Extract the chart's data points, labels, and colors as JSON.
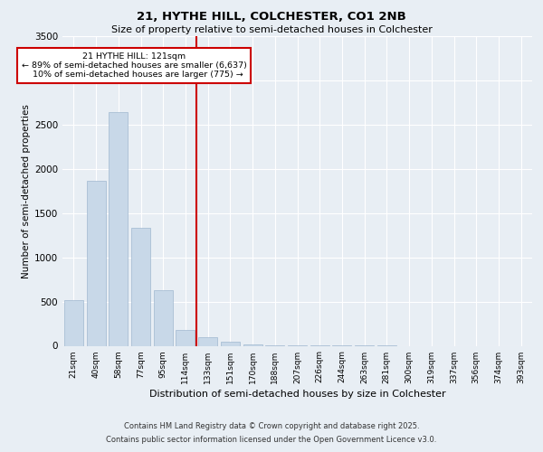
{
  "title1": "21, HYTHE HILL, COLCHESTER, CO1 2NB",
  "title2": "Size of property relative to semi-detached houses in Colchester",
  "xlabel": "Distribution of semi-detached houses by size in Colchester",
  "ylabel": "Number of semi-detached properties",
  "bin_labels": [
    "21sqm",
    "40sqm",
    "58sqm",
    "77sqm",
    "95sqm",
    "114sqm",
    "133sqm",
    "151sqm",
    "170sqm",
    "188sqm",
    "207sqm",
    "226sqm",
    "244sqm",
    "263sqm",
    "281sqm",
    "300sqm",
    "319sqm",
    "337sqm",
    "356sqm",
    "374sqm",
    "393sqm"
  ],
  "bar_values": [
    520,
    1860,
    2640,
    1330,
    630,
    180,
    100,
    50,
    20,
    10,
    5,
    3,
    2,
    1,
    1,
    0,
    0,
    0,
    0,
    0,
    0
  ],
  "bar_color": "#c8d8e8",
  "bar_edge_color": "#a0b8d0",
  "vline_x": 5.5,
  "vline_color": "#cc0000",
  "ann_line1": "21 HYTHE HILL: 121sqm",
  "ann_line2": "← 89% of semi-detached houses are smaller (6,637)",
  "ann_line3": "   10% of semi-detached houses are larger (775) →",
  "ann_box_color": "#ffffff",
  "ann_box_edge": "#cc0000",
  "ylim": [
    0,
    3500
  ],
  "yticks": [
    0,
    500,
    1000,
    1500,
    2000,
    2500,
    3000,
    3500
  ],
  "footer1": "Contains HM Land Registry data © Crown copyright and database right 2025.",
  "footer2": "Contains public sector information licensed under the Open Government Licence v3.0.",
  "bg_color": "#e8eef4",
  "plot_bg": "#e8eef4"
}
